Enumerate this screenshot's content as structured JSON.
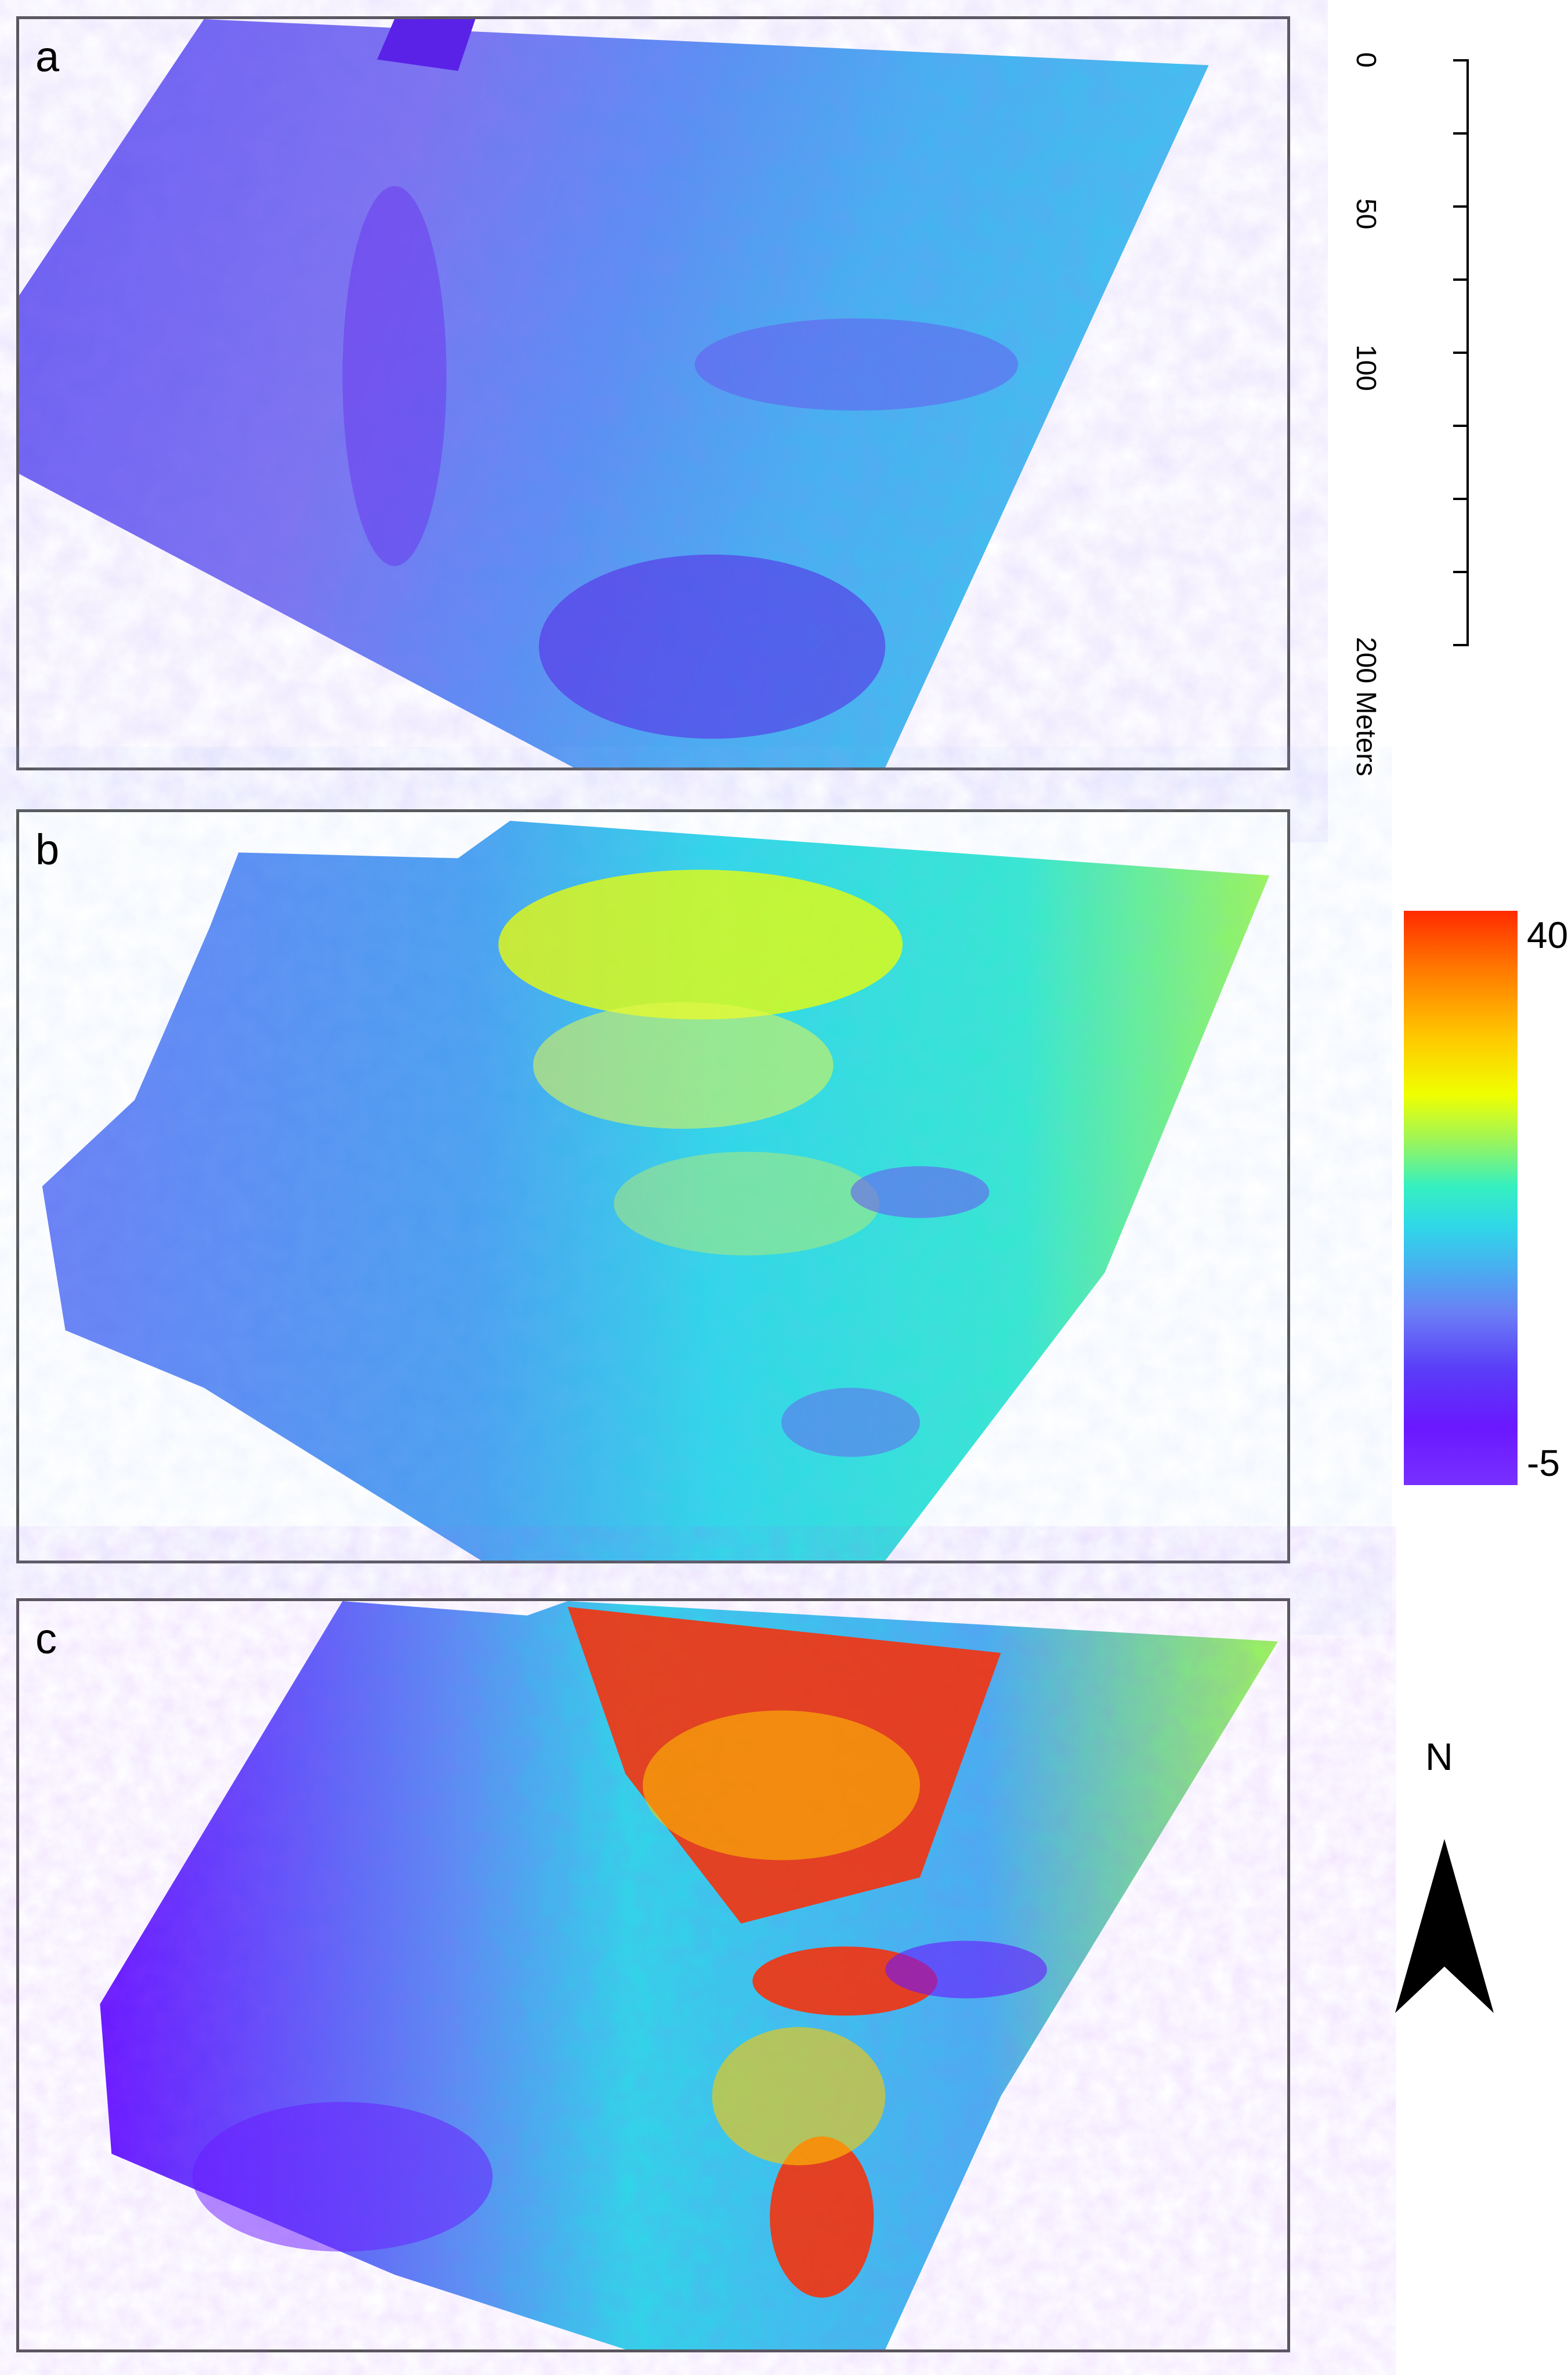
{
  "panels": [
    {
      "id": "a",
      "letter": "a"
    },
    {
      "id": "b",
      "letter": "b"
    },
    {
      "id": "c",
      "letter": "c"
    }
  ],
  "scale_bar": {
    "ticks": [
      "0",
      "50",
      "100",
      "200 Meters"
    ]
  },
  "legend": {
    "max_label": "40",
    "min_label": "-5",
    "colors": [
      "#ff2a00",
      "#ffc800",
      "#f0ff00",
      "#35f0c0",
      "#47b0f0",
      "#6a7ff5",
      "#7830ff"
    ]
  },
  "north_arrow": {
    "label": "N"
  }
}
